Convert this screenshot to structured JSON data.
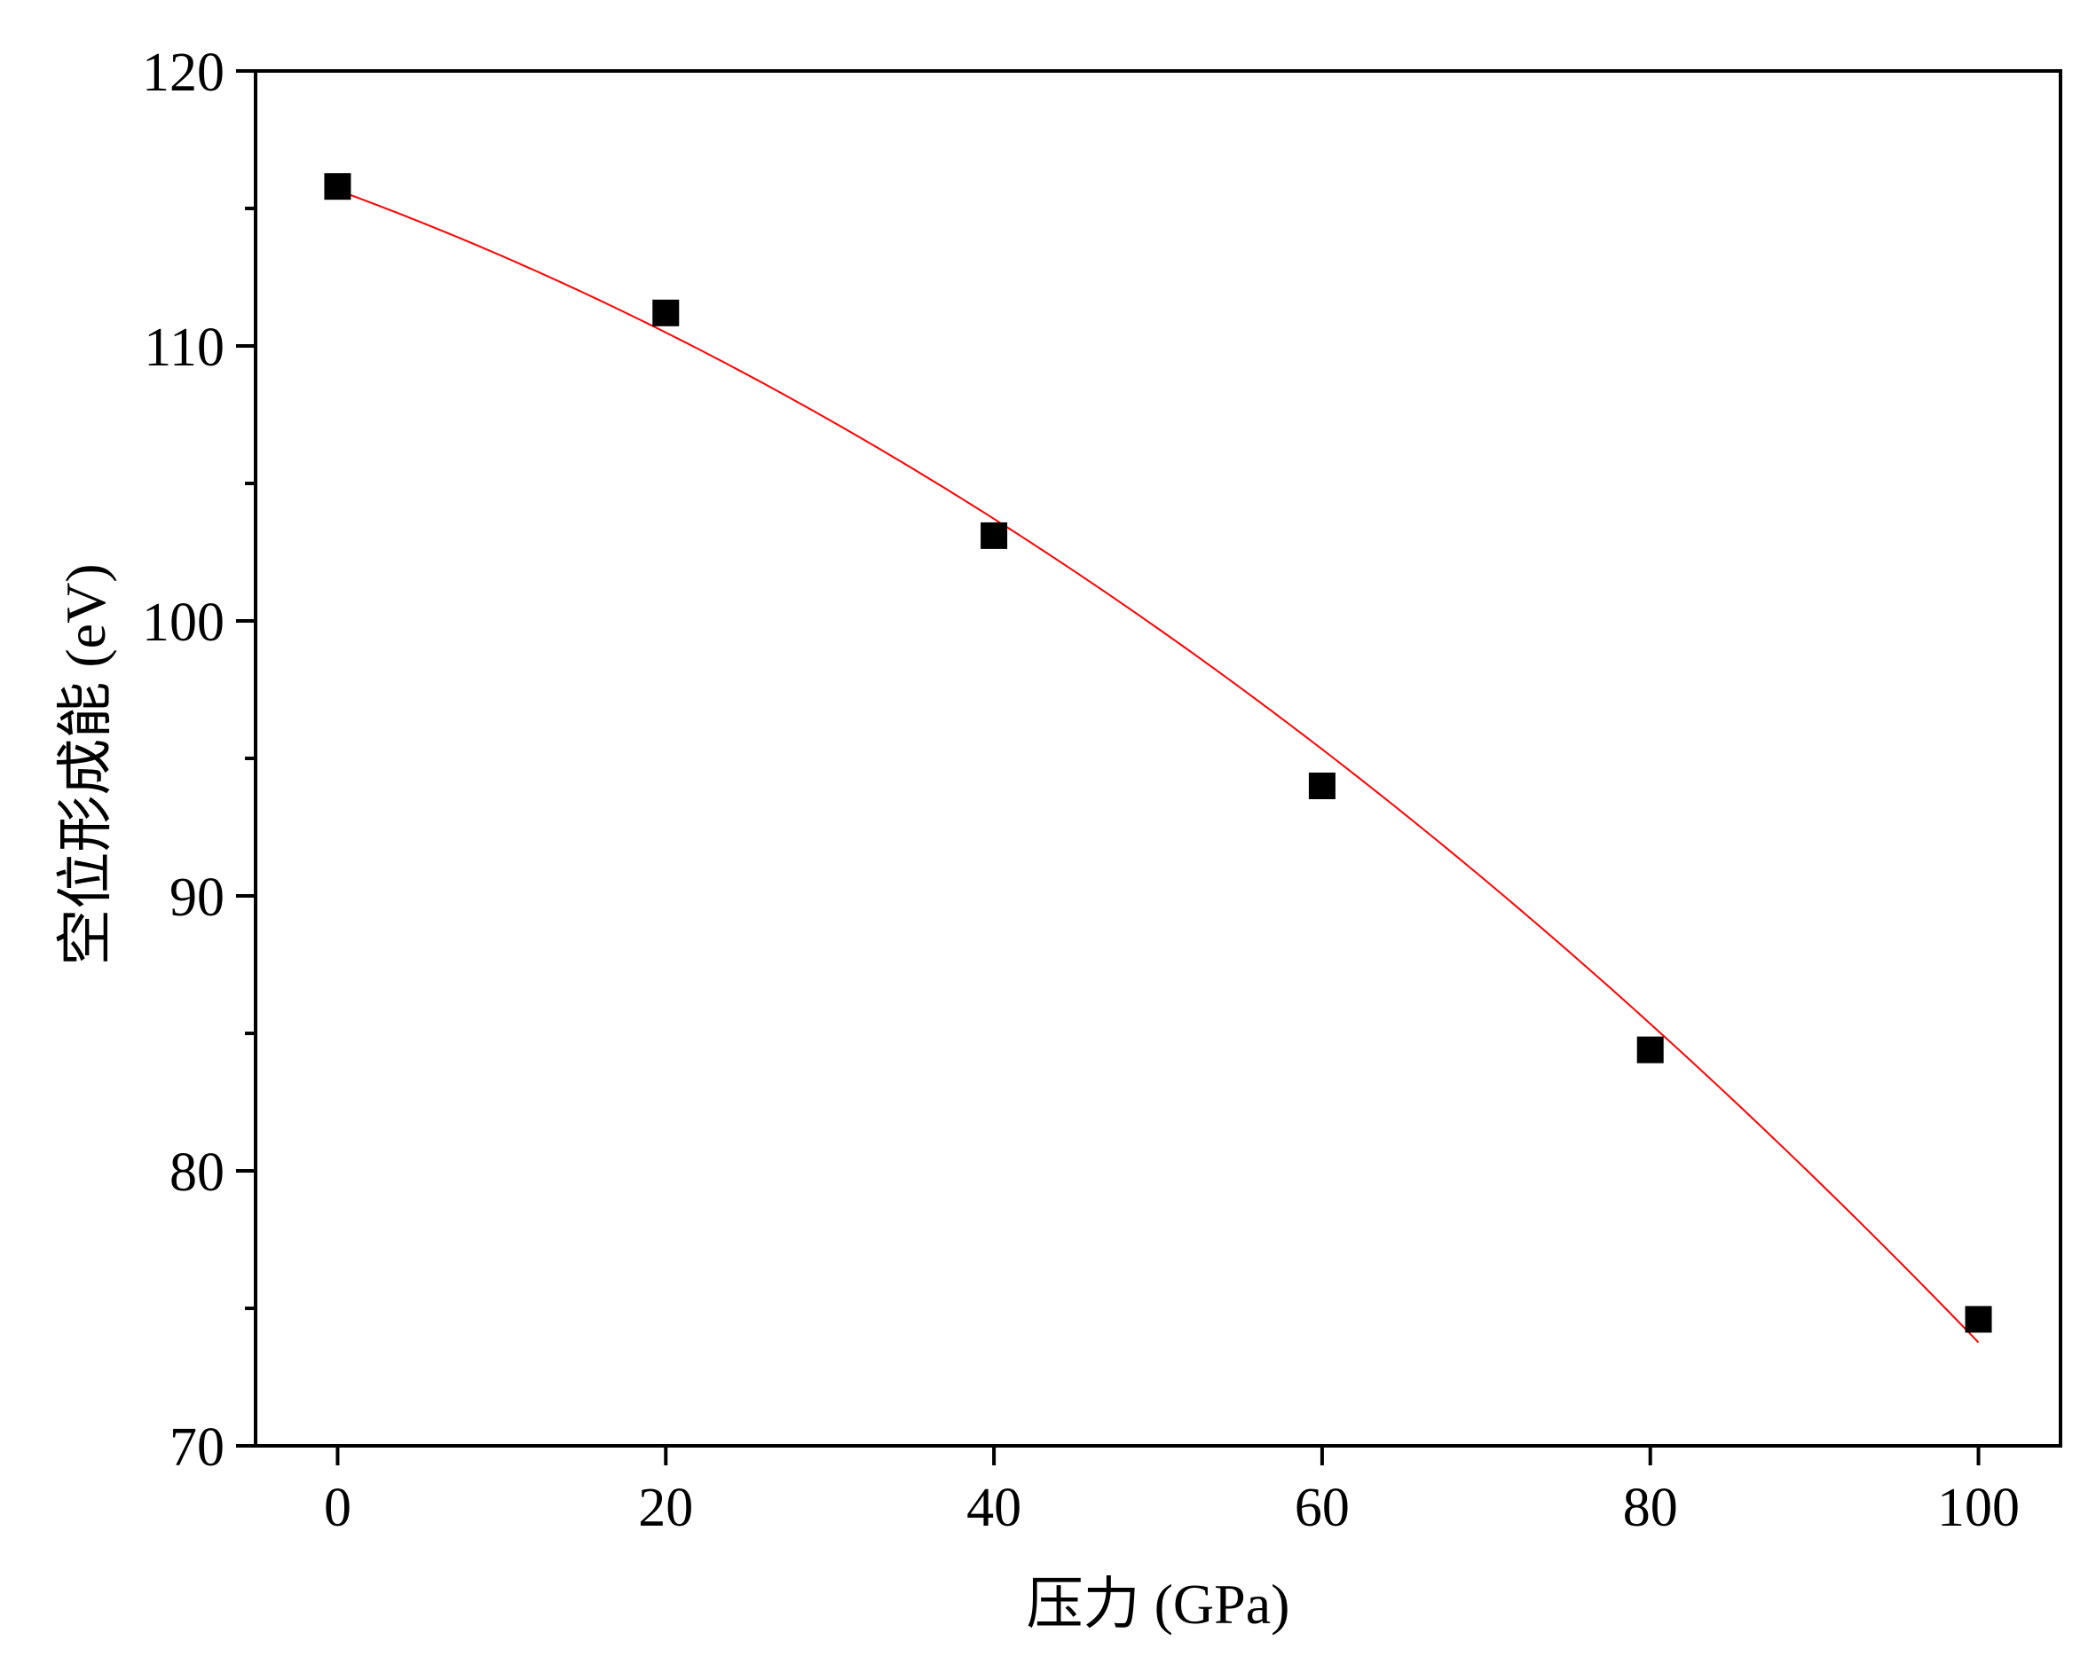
{
  "chart_data": {
    "type": "scatter",
    "xlabel": "压力 (GPa)",
    "ylabel": "空位形成能 (eV)",
    "xlim": [
      -5,
      105
    ],
    "ylim": [
      70,
      120
    ],
    "x_ticks": [
      0,
      20,
      40,
      60,
      80,
      100
    ],
    "y_ticks": [
      70,
      80,
      90,
      100,
      110,
      120
    ],
    "y_minor_ticks": [
      75,
      85,
      95,
      105,
      115
    ],
    "grid": false,
    "series": [
      {
        "marker": "square",
        "color": "#000000",
        "x": [
          0,
          20,
          40,
          60,
          80,
          100
        ],
        "y": [
          115.8,
          111.2,
          103.1,
          94.0,
          84.4,
          74.6
        ]
      }
    ],
    "fit_line": {
      "kind": "polynomial-2",
      "color": "#ff0000",
      "x": [
        0,
        20,
        40,
        60,
        80,
        100
      ],
      "y": [
        115.8,
        110.3,
        103.6,
        95.4,
        85.6,
        73.6
      ]
    }
  }
}
